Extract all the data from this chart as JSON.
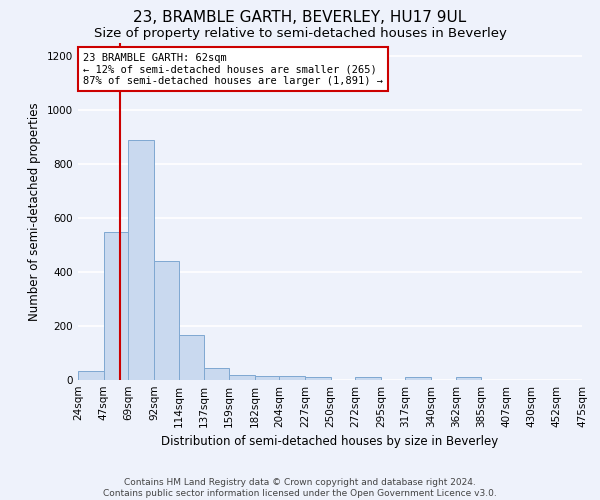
{
  "title": "23, BRAMBLE GARTH, BEVERLEY, HU17 9UL",
  "subtitle": "Size of property relative to semi-detached houses in Beverley",
  "xlabel": "Distribution of semi-detached houses by size in Beverley",
  "ylabel": "Number of semi-detached properties",
  "bar_values": [
    35,
    550,
    890,
    440,
    165,
    45,
    20,
    15,
    15,
    10,
    0,
    10,
    0,
    10,
    0,
    10,
    0,
    0,
    0,
    0
  ],
  "x_labels": [
    "24sqm",
    "47sqm",
    "69sqm",
    "92sqm",
    "114sqm",
    "137sqm",
    "159sqm",
    "182sqm",
    "204sqm",
    "227sqm",
    "250sqm",
    "272sqm",
    "295sqm",
    "317sqm",
    "340sqm",
    "362sqm",
    "385sqm",
    "407sqm",
    "430sqm",
    "452sqm",
    "475sqm"
  ],
  "bar_color": "#c9d9ef",
  "bar_edge_color": "#7fa8d1",
  "background_color": "#eef2fb",
  "grid_color": "#ffffff",
  "ylim": [
    0,
    1250
  ],
  "yticks": [
    0,
    200,
    400,
    600,
    800,
    1000,
    1200
  ],
  "bin_edges": [
    24,
    47,
    69,
    92,
    114,
    137,
    159,
    182,
    204,
    227,
    250,
    272,
    295,
    317,
    340,
    362,
    385,
    407,
    430,
    452,
    475
  ],
  "property_line_x": 62,
  "annotation_title": "23 BRAMBLE GARTH: 62sqm",
  "annotation_line1": "← 12% of semi-detached houses are smaller (265)",
  "annotation_line2": "87% of semi-detached houses are larger (1,891) →",
  "annotation_box_color": "#ffffff",
  "annotation_border_color": "#cc0000",
  "footer_line1": "Contains HM Land Registry data © Crown copyright and database right 2024.",
  "footer_line2": "Contains public sector information licensed under the Open Government Licence v3.0.",
  "title_fontsize": 11,
  "subtitle_fontsize": 9.5,
  "axis_label_fontsize": 8.5,
  "tick_fontsize": 7.5,
  "annotation_fontsize": 7.5,
  "footer_fontsize": 6.5
}
